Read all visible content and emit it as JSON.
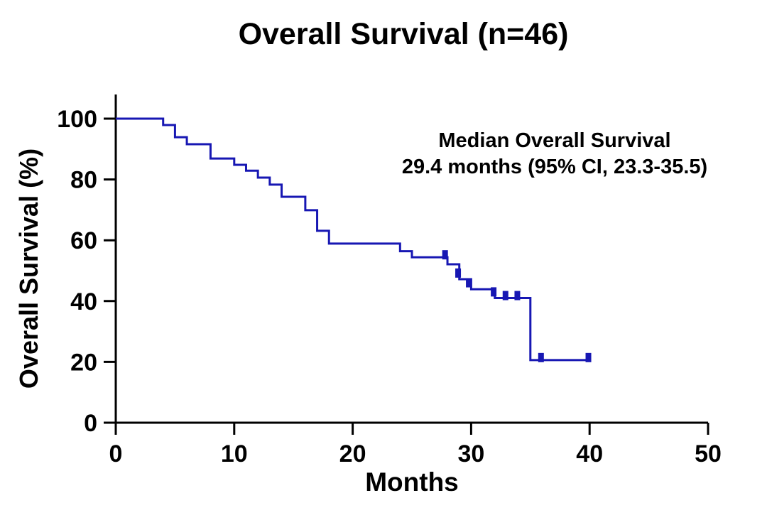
{
  "chart_data": {
    "type": "line",
    "subtype": "kaplan-meier-step-curve",
    "title": "Overall Survival (n=46)",
    "xlabel": "Months",
    "ylabel": "Overall Survival (%)",
    "annotation": {
      "line1": "Median Overall Survival",
      "line2": "29.4 months (95% CI, 23.3-35.5)"
    },
    "xlim": [
      0,
      50
    ],
    "ylim": [
      0,
      100
    ],
    "x_ticks": [
      0,
      10,
      20,
      30,
      40,
      50
    ],
    "y_ticks": [
      0,
      20,
      40,
      60,
      80,
      100
    ],
    "grid": false,
    "legend": "none",
    "line_color": "#1717b3",
    "axis_color": "#000000",
    "series": [
      {
        "name": "Overall Survival",
        "n": 46,
        "steps_time_percent": [
          [
            0,
            100
          ],
          [
            4,
            97.9
          ],
          [
            5,
            93.9
          ],
          [
            6,
            91.6
          ],
          [
            8,
            86.9
          ],
          [
            10,
            84.8
          ],
          [
            11,
            82.9
          ],
          [
            12,
            80.6
          ],
          [
            13,
            78.3
          ],
          [
            14,
            74.3
          ],
          [
            16,
            69.9
          ],
          [
            17,
            63.1
          ],
          [
            18,
            58.9
          ],
          [
            24,
            56.4
          ],
          [
            25,
            54.4
          ],
          [
            28,
            52.1
          ],
          [
            29,
            47.2
          ],
          [
            30,
            43.9
          ],
          [
            32,
            41.0
          ],
          [
            35,
            20.6
          ]
        ],
        "end_time": 40,
        "censor_marks_time_percent": [
          [
            27.8,
            54.4
          ],
          [
            28.9,
            48.4
          ],
          [
            29.8,
            45.2
          ],
          [
            31.9,
            42.2
          ],
          [
            32.9,
            41.0
          ],
          [
            33.9,
            41.0
          ],
          [
            35.9,
            20.6
          ],
          [
            39.9,
            20.6
          ]
        ]
      }
    ]
  }
}
